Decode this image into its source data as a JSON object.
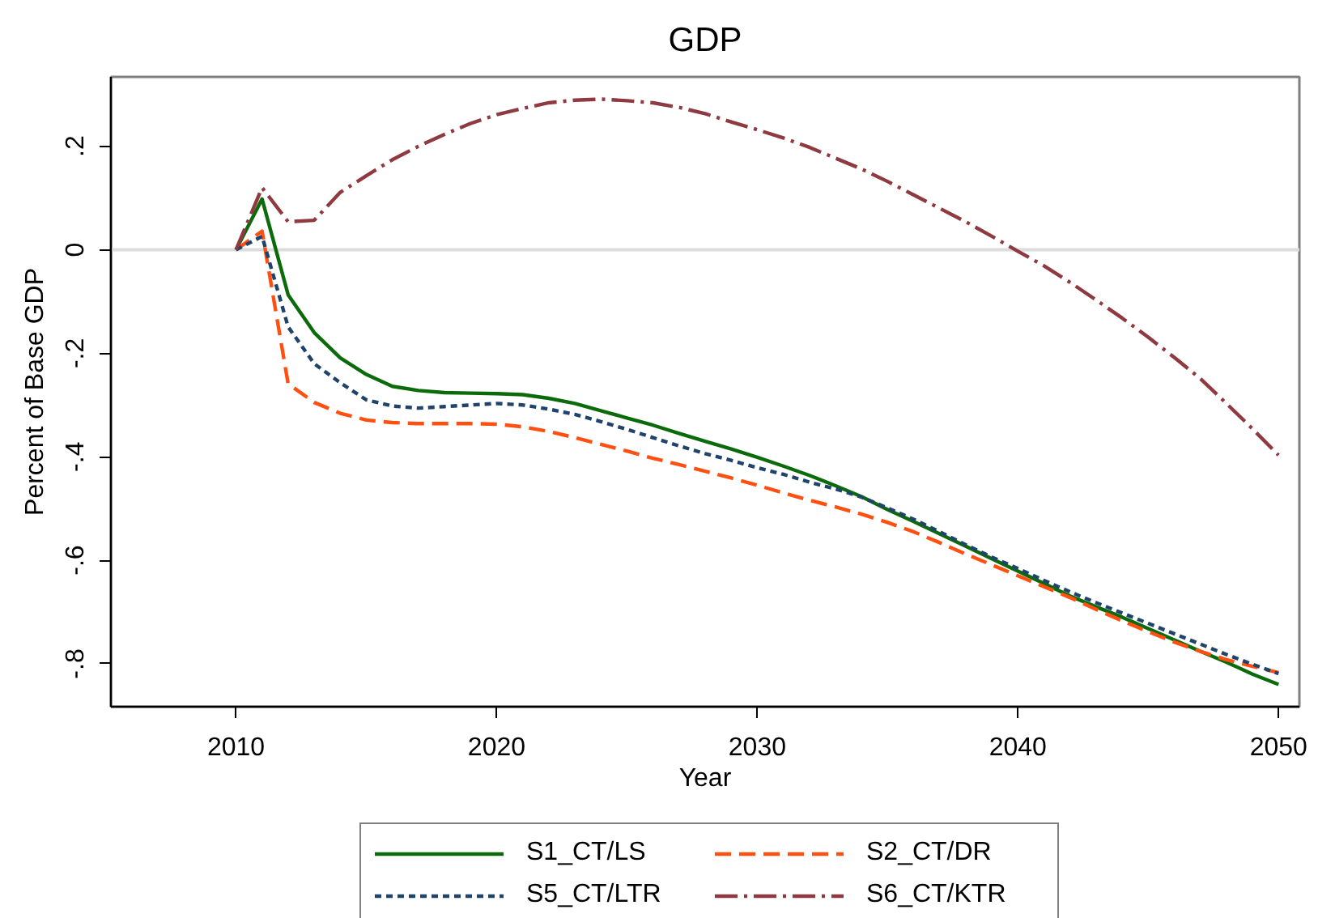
{
  "chart_data": {
    "type": "line",
    "title": "GDP",
    "xlabel": "Year",
    "ylabel": "Percent of Base GDP",
    "x": [
      2010,
      2011,
      2012,
      2013,
      2014,
      2015,
      2016,
      2017,
      2018,
      2019,
      2020,
      2021,
      2022,
      2023,
      2024,
      2025,
      2026,
      2027,
      2028,
      2029,
      2030,
      2031,
      2032,
      2033,
      2034,
      2035,
      2036,
      2037,
      2038,
      2039,
      2040,
      2041,
      2042,
      2043,
      2044,
      2045,
      2046,
      2047,
      2048,
      2049,
      2050
    ],
    "xlim": [
      2005.2,
      2050.8
    ],
    "xticks": [
      2010,
      2020,
      2030,
      2040,
      2050
    ],
    "ylim": [
      -0.883,
      0.334
    ],
    "yticks": [
      {
        "value": 0.2,
        "label": ".2"
      },
      0,
      {
        "value": -0.2,
        "label": "-.2"
      },
      {
        "value": -0.4,
        "label": "-.4"
      },
      {
        "value": -0.6,
        "label": "-.6"
      },
      {
        "value": -0.8,
        "label": "-.8"
      }
    ],
    "legend": "bottom",
    "ref_lines": [
      {
        "axis": "y",
        "value": 0,
        "color": "#dcdcdc"
      }
    ],
    "series": [
      {
        "name": "S1_CT/LS",
        "color": "#0b6b0b",
        "line_style": "solid",
        "values": [
          0,
          0.098,
          -0.087,
          -0.16,
          -0.209,
          -0.241,
          -0.264,
          -0.272,
          -0.276,
          -0.277,
          -0.278,
          -0.28,
          -0.287,
          -0.297,
          -0.311,
          -0.325,
          -0.339,
          -0.355,
          -0.37,
          -0.385,
          -0.401,
          -0.418,
          -0.436,
          -0.456,
          -0.477,
          -0.502,
          -0.525,
          -0.549,
          -0.573,
          -0.597,
          -0.621,
          -0.645,
          -0.669,
          -0.69,
          -0.71,
          -0.732,
          -0.754,
          -0.776,
          -0.797,
          -0.82,
          -0.84
        ]
      },
      {
        "name": "S2_CT/DR",
        "color": "#ff5012",
        "line_style": "dashed",
        "values": [
          0,
          0.036,
          -0.259,
          -0.295,
          -0.316,
          -0.329,
          -0.334,
          -0.336,
          -0.336,
          -0.336,
          -0.337,
          -0.342,
          -0.351,
          -0.363,
          -0.376,
          -0.389,
          -0.403,
          -0.415,
          -0.428,
          -0.441,
          -0.455,
          -0.47,
          -0.484,
          -0.497,
          -0.511,
          -0.527,
          -0.545,
          -0.566,
          -0.588,
          -0.609,
          -0.63,
          -0.651,
          -0.672,
          -0.695,
          -0.717,
          -0.738,
          -0.758,
          -0.776,
          -0.792,
          -0.805,
          -0.817
        ]
      },
      {
        "name": "S5_CT/LTR",
        "color": "#1f436b",
        "line_style": "dotted",
        "values": [
          0,
          0.026,
          -0.149,
          -0.22,
          -0.257,
          -0.29,
          -0.302,
          -0.306,
          -0.303,
          -0.3,
          -0.297,
          -0.3,
          -0.308,
          -0.318,
          -0.332,
          -0.347,
          -0.363,
          -0.379,
          -0.394,
          -0.407,
          -0.421,
          -0.434,
          -0.449,
          -0.462,
          -0.478,
          -0.499,
          -0.521,
          -0.545,
          -0.57,
          -0.594,
          -0.616,
          -0.639,
          -0.661,
          -0.682,
          -0.702,
          -0.722,
          -0.742,
          -0.762,
          -0.782,
          -0.801,
          -0.819
        ]
      },
      {
        "name": "S6_CT/KTR",
        "color": "#8e3a40",
        "line_style": "dashdot",
        "values": [
          0,
          0.12,
          0.054,
          0.057,
          0.111,
          0.143,
          0.174,
          0.2,
          0.223,
          0.244,
          0.261,
          0.273,
          0.284,
          0.289,
          0.291,
          0.288,
          0.284,
          0.275,
          0.263,
          0.247,
          0.232,
          0.216,
          0.198,
          0.177,
          0.156,
          0.132,
          0.106,
          0.08,
          0.054,
          0.026,
          -0.003,
          -0.031,
          -0.063,
          -0.097,
          -0.132,
          -0.169,
          -0.208,
          -0.249,
          -0.297,
          -0.346,
          -0.397
        ]
      }
    ]
  }
}
